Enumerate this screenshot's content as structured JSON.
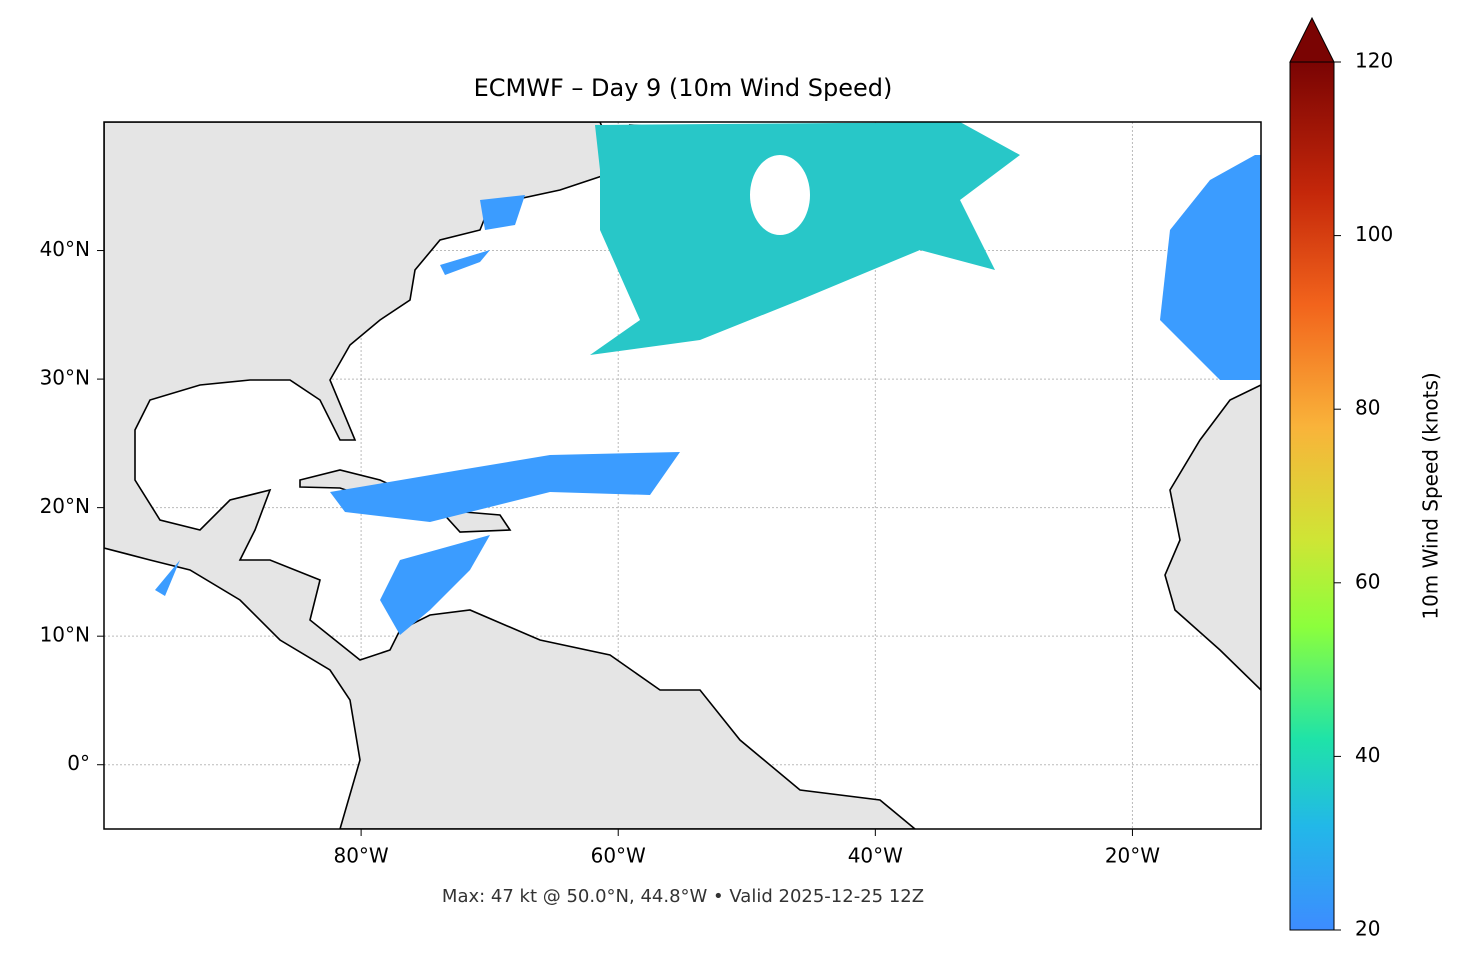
{
  "chart_data": {
    "type": "map",
    "title": "ECMWF – Day 9 (10m Wind Speed)",
    "footnote": "Max: 47 kt @ 50.0°N, 44.8°W • Valid 2025-12-25 12Z",
    "xlim": [
      -100,
      -10
    ],
    "ylim": [
      -5,
      50
    ],
    "xticks": [
      {
        "value": -80,
        "label": "80°W"
      },
      {
        "value": -60,
        "label": "60°W"
      },
      {
        "value": -40,
        "label": "40°W"
      },
      {
        "value": -20,
        "label": "20°W"
      }
    ],
    "yticks": [
      {
        "value": 0,
        "label": "0°"
      },
      {
        "value": 10,
        "label": "10°N"
      },
      {
        "value": 20,
        "label": "20°N"
      },
      {
        "value": 30,
        "label": "30°N"
      },
      {
        "value": 40,
        "label": "40°N"
      }
    ],
    "grid": true,
    "colorbar": {
      "label": "10m Wind Speed (knots)",
      "lim": [
        20,
        120
      ],
      "ticks": [
        20,
        40,
        60,
        80,
        100,
        120
      ],
      "extend": "max"
    }
  }
}
